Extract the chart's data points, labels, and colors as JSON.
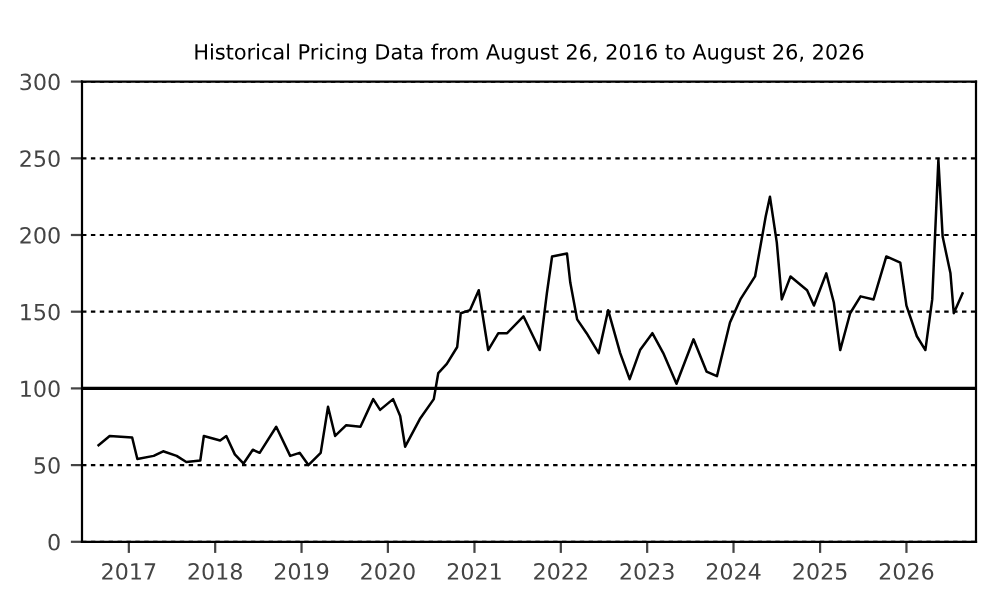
{
  "chart_data": {
    "type": "line",
    "title": "Historical Pricing Data from August 26, 2016 to August 26, 2026",
    "x": [
      "2016-08-26",
      "2016-10-12",
      "2017-01-15",
      "2017-02-06",
      "2017-04-16",
      "2017-05-26",
      "2017-07-22",
      "2017-09-01",
      "2017-10-30",
      "2017-11-14",
      "2018-01-22",
      "2018-02-17",
      "2018-03-25",
      "2018-05-01",
      "2018-06-09",
      "2018-07-08",
      "2018-09-16",
      "2018-11-14",
      "2018-12-24",
      "2019-01-30",
      "2019-03-23",
      "2019-04-23",
      "2019-05-23",
      "2019-07-09",
      "2019-09-07",
      "2019-10-31",
      "2019-11-29",
      "2020-01-23",
      "2020-02-22",
      "2020-03-14",
      "2020-05-15",
      "2020-07-13",
      "2020-08-01",
      "2020-09-06",
      "2020-10-20",
      "2020-11-04",
      "2020-12-13",
      "2021-01-19",
      "2021-02-28",
      "2021-04-12",
      "2021-05-19",
      "2021-07-27",
      "2021-10-04",
      "2021-11-03",
      "2021-11-25",
      "2022-01-27",
      "2022-02-10",
      "2022-03-11",
      "2022-04-20",
      "2022-06-10",
      "2022-07-20",
      "2022-09-09",
      "2022-10-19",
      "2022-12-02",
      "2023-01-23",
      "2023-03-10",
      "2023-05-05",
      "2023-07-16",
      "2023-09-09",
      "2023-10-23",
      "2023-12-17",
      "2024-01-30",
      "2024-04-01",
      "2024-05-16",
      "2024-06-03",
      "2024-07-02",
      "2024-07-23",
      "2024-08-29",
      "2024-11-07",
      "2024-12-06",
      "2025-01-27",
      "2025-02-28",
      "2025-03-27",
      "2025-05-08",
      "2025-06-21",
      "2025-08-15",
      "2025-10-08",
      "2025-12-06",
      "2026-01-01",
      "2026-02-14",
      "2026-03-22",
      "2026-04-20",
      "2026-05-16",
      "2026-06-03",
      "2026-07-06",
      "2026-07-20",
      "2026-08-26"
    ],
    "series": [
      {
        "color": "#000000",
        "values": [
          63,
          69,
          68,
          54,
          56,
          59,
          56,
          52,
          53,
          69,
          66,
          69,
          57,
          51,
          60,
          58,
          75,
          56,
          58,
          50,
          58,
          88,
          69,
          76,
          75,
          93,
          86,
          93,
          82,
          62,
          80,
          93,
          110,
          116,
          127,
          149,
          151,
          164,
          125,
          136,
          136,
          147,
          125,
          162,
          186,
          188,
          169,
          145,
          136,
          123,
          151,
          123,
          106,
          125,
          136,
          123,
          103,
          132,
          111,
          108,
          143,
          158,
          173,
          212,
          225,
          195,
          158,
          173,
          164,
          154,
          175,
          156,
          125,
          149,
          160,
          158,
          186,
          182,
          154,
          134,
          125,
          158,
          249,
          199,
          175,
          149,
          162
        ]
      }
    ],
    "xlim": [
      "2016-06-17",
      "2026-10-22"
    ],
    "xticks": [
      {
        "value": "2017-01-01",
        "label": "2017"
      },
      {
        "value": "2018-01-01",
        "label": "2018"
      },
      {
        "value": "2019-01-01",
        "label": "2019"
      },
      {
        "value": "2020-01-01",
        "label": "2020"
      },
      {
        "value": "2021-01-01",
        "label": "2021"
      },
      {
        "value": "2022-01-01",
        "label": "2022"
      },
      {
        "value": "2023-01-01",
        "label": "2023"
      },
      {
        "value": "2024-01-01",
        "label": "2024"
      },
      {
        "value": "2025-01-01",
        "label": "2025"
      },
      {
        "value": "2026-01-01",
        "label": "2026"
      }
    ],
    "ylim": [
      0,
      300
    ],
    "yticks": [
      0,
      50,
      100,
      150,
      200,
      250,
      300
    ],
    "grid": "y",
    "marker": "none",
    "line_style": "solid",
    "ref_lines": [
      {
        "axis": "y",
        "value": 100,
        "color": "#000000",
        "line_style": "solid"
      }
    ]
  }
}
